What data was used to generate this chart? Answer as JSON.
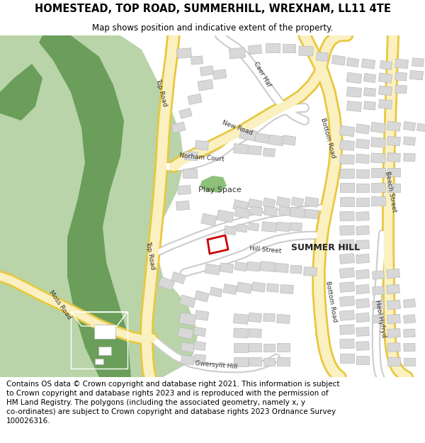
{
  "title_line1": "HOMESTEAD, TOP ROAD, SUMMERHILL, WREXHAM, LL11 4TE",
  "title_line2": "Map shows position and indicative extent of the property.",
  "footer_text": "Contains OS data © Crown copyright and database right 2021. This information is subject to Crown copyright and database rights 2023 and is reproduced with the permission of HM Land Registry. The polygons (including the associated geometry, namely x, y co-ordinates) are subject to Crown copyright and database rights 2023 Ordnance Survey 100026316.",
  "map_bg": "#f2f0eb",
  "road_yellow_fill": "#faf0c0",
  "road_yellow_border": "#e8c840",
  "road_white_fill": "#ffffff",
  "road_white_border": "#cccccc",
  "building_fill": "#d8d8d8",
  "building_border": "#bbbbbb",
  "green_light": "#b8d4a8",
  "green_dark": "#6a9e5a",
  "play_green": "#8dc07a",
  "red_plot": "#cc0000",
  "title_fontsize": 10.5,
  "footer_fontsize": 7.5,
  "label_fontsize": 6.5,
  "fig_width": 6.0,
  "fig_height": 6.25,
  "dpi": 100
}
